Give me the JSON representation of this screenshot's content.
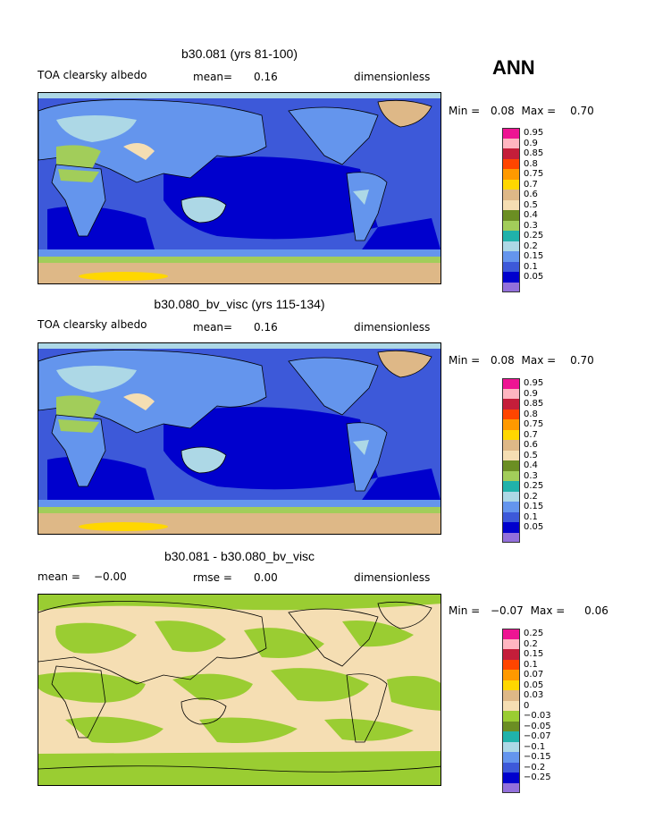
{
  "season": "ANN",
  "panels": [
    {
      "title": "b30.081 (yrs 81-100)",
      "left_label": "TOA clearsky albedo",
      "mean_label": "mean=",
      "mean_value": "0.16",
      "units": "dimensionless",
      "min_label": "Min =",
      "min_value": "0.08",
      "max_label": "Max =",
      "max_value": "0.70",
      "colorbar": [
        {
          "label": "0.95",
          "color": "#ee1493"
        },
        {
          "label": "0.9",
          "color": "#ffb6c1"
        },
        {
          "label": "0.85",
          "color": "#c41e3a"
        },
        {
          "label": "0.8",
          "color": "#ff4500"
        },
        {
          "label": "0.75",
          "color": "#ff9900"
        },
        {
          "label": "0.7",
          "color": "#ffd700"
        },
        {
          "label": "0.6",
          "color": "#deb887"
        },
        {
          "label": "0.5",
          "color": "#f5deb3"
        },
        {
          "label": "0.4",
          "color": "#6b8e23"
        },
        {
          "label": "0.3",
          "color": "#a2cd5a"
        },
        {
          "label": "0.25",
          "color": "#20b2aa"
        },
        {
          "label": "0.2",
          "color": "#add8e6"
        },
        {
          "label": "0.15",
          "color": "#6495ed"
        },
        {
          "label": "0.1",
          "color": "#3d59d9"
        },
        {
          "label": "0.05",
          "color": "#0000cd"
        },
        {
          "label": "",
          "color": "#9370db"
        }
      ]
    },
    {
      "title": "b30.080_bv_visc (yrs 115-134)",
      "left_label": "TOA clearsky albedo",
      "mean_label": "mean=",
      "mean_value": "0.16",
      "units": "dimensionless",
      "min_label": "Min =",
      "min_value": "0.08",
      "max_label": "Max =",
      "max_value": "0.70",
      "colorbar": [
        {
          "label": "0.95",
          "color": "#ee1493"
        },
        {
          "label": "0.9",
          "color": "#ffb6c1"
        },
        {
          "label": "0.85",
          "color": "#c41e3a"
        },
        {
          "label": "0.8",
          "color": "#ff4500"
        },
        {
          "label": "0.75",
          "color": "#ff9900"
        },
        {
          "label": "0.7",
          "color": "#ffd700"
        },
        {
          "label": "0.6",
          "color": "#deb887"
        },
        {
          "label": "0.5",
          "color": "#f5deb3"
        },
        {
          "label": "0.4",
          "color": "#6b8e23"
        },
        {
          "label": "0.3",
          "color": "#a2cd5a"
        },
        {
          "label": "0.25",
          "color": "#20b2aa"
        },
        {
          "label": "0.2",
          "color": "#add8e6"
        },
        {
          "label": "0.15",
          "color": "#6495ed"
        },
        {
          "label": "0.1",
          "color": "#3d59d9"
        },
        {
          "label": "0.05",
          "color": "#0000cd"
        },
        {
          "label": "",
          "color": "#9370db"
        }
      ]
    },
    {
      "title": "b30.081 - b30.080_bv_visc",
      "left_label": "mean =",
      "left_value": "−0.00",
      "rmse_label": "rmse =",
      "rmse_value": "0.00",
      "units": "dimensionless",
      "min_label": "Min =",
      "min_value": "−0.07",
      "max_label": "Max =",
      "max_value": "0.06",
      "colorbar": [
        {
          "label": "0.25",
          "color": "#ee1493"
        },
        {
          "label": "0.2",
          "color": "#ffb6c1"
        },
        {
          "label": "0.15",
          "color": "#c41e3a"
        },
        {
          "label": "0.1",
          "color": "#ff4500"
        },
        {
          "label": "0.07",
          "color": "#ff9900"
        },
        {
          "label": "0.05",
          "color": "#ffd700"
        },
        {
          "label": "0.03",
          "color": "#deb887"
        },
        {
          "label": "0",
          "color": "#f5deb3"
        },
        {
          "label": "−0.03",
          "color": "#9acd32"
        },
        {
          "label": "−0.05",
          "color": "#6b8e23"
        },
        {
          "label": "−0.07",
          "color": "#20b2aa"
        },
        {
          "label": "−0.1",
          "color": "#add8e6"
        },
        {
          "label": "−0.15",
          "color": "#6495ed"
        },
        {
          "label": "−0.2",
          "color": "#3d59d9"
        },
        {
          "label": "−0.25",
          "color": "#0000cd"
        },
        {
          "label": "",
          "color": "#9370db"
        }
      ]
    }
  ]
}
